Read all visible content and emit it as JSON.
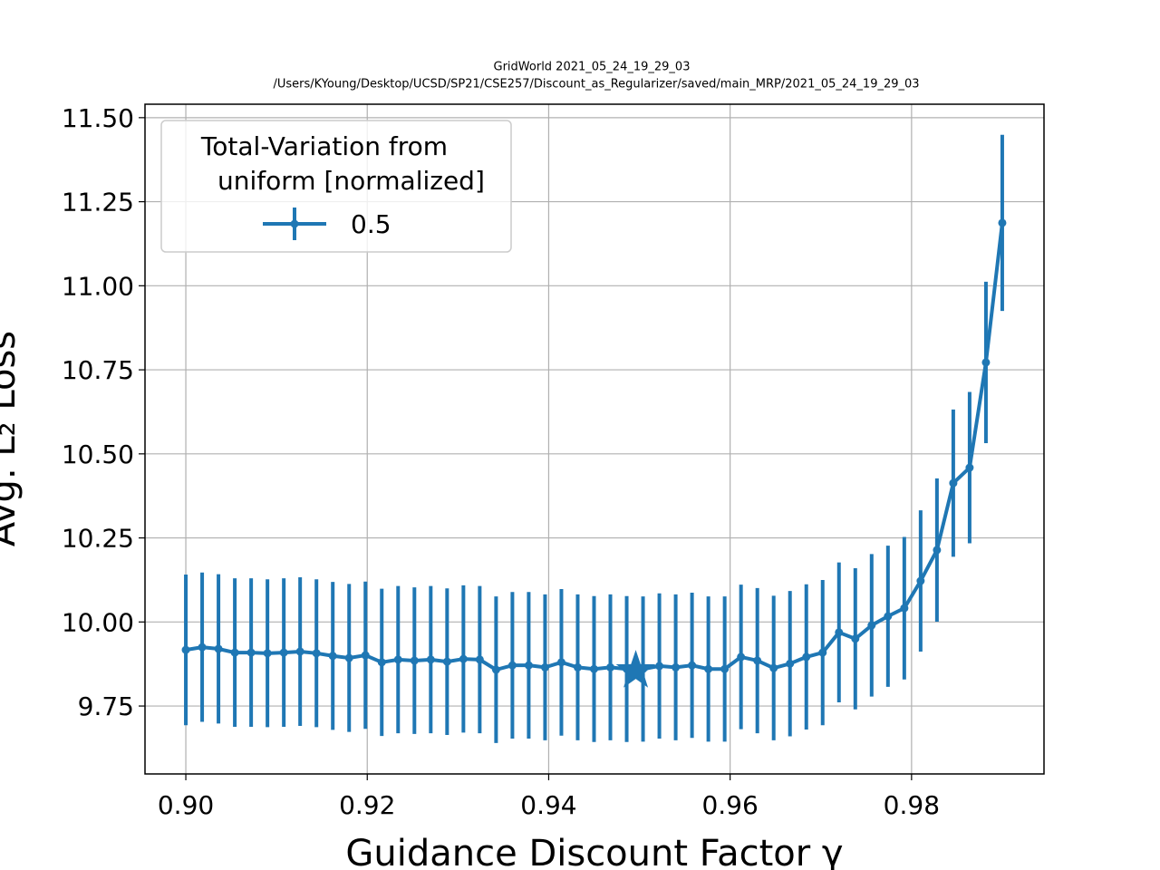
{
  "chart_data": {
    "type": "line",
    "title": "GridWorld  2021_05_24_19_29_03",
    "subtitle": "/Users/KYoung/Desktop/UCSD/SP21/CSE257/Discount_as_Regularizer/saved/main_MRP/2021_05_24_19_29_03",
    "x_label": "Guidance Discount Factor γ",
    "y_label": "Avg. L₂ Loss",
    "legend_title": "Total-Variation from\n uniform [normalized]",
    "legend_position": "upper left",
    "grid": true,
    "xlim": [
      0.8955,
      0.9946
    ],
    "ylim": [
      9.548,
      11.54
    ],
    "xticks": [
      {
        "value": 0.9,
        "label": "0.90"
      },
      {
        "value": 0.92,
        "label": "0.92"
      },
      {
        "value": 0.94,
        "label": "0.94"
      },
      {
        "value": 0.96,
        "label": "0.96"
      },
      {
        "value": 0.98,
        "label": "0.98"
      }
    ],
    "yticks": [
      9.75,
      {
        "value": 10,
        "label": "10.00"
      },
      10.25,
      {
        "value": 10.5,
        "label": "10.50"
      },
      10.75,
      {
        "value": 11,
        "label": "11.00"
      },
      11.25,
      {
        "value": 11.5,
        "label": "11.50"
      }
    ],
    "x": [
      0.9,
      0.9018,
      0.9036,
      0.9054,
      0.9072,
      0.909,
      0.9108,
      0.9126,
      0.9144,
      0.9162,
      0.918,
      0.9198,
      0.9216,
      0.9234,
      0.9252,
      0.927,
      0.9288,
      0.9306,
      0.9324,
      0.9342,
      0.936,
      0.9378,
      0.9396,
      0.9414,
      0.9432,
      0.945,
      0.9468,
      0.9486,
      0.9504,
      0.9522,
      0.954,
      0.9558,
      0.9576,
      0.9594,
      0.9612,
      0.963,
      0.9648,
      0.9666,
      0.9684,
      0.9702,
      0.972,
      0.9738,
      0.9756,
      0.9774,
      0.9792,
      0.981,
      0.9828,
      0.9846,
      0.9864,
      0.9882,
      0.99
    ],
    "series": [
      {
        "name": "0.5",
        "color": "#1f77b4",
        "values": [
          9.917,
          9.925,
          9.92,
          9.909,
          9.909,
          9.907,
          9.909,
          9.912,
          9.907,
          9.899,
          9.893,
          9.901,
          9.88,
          9.888,
          9.885,
          9.888,
          9.882,
          9.89,
          9.888,
          9.858,
          9.871,
          9.871,
          9.865,
          9.88,
          9.865,
          9.86,
          9.865,
          9.86,
          9.86,
          9.869,
          9.865,
          9.871,
          9.86,
          9.86,
          9.896,
          9.885,
          9.863,
          9.876,
          9.896,
          9.909,
          9.969,
          9.95,
          9.99,
          10.017,
          10.041,
          10.122,
          10.214,
          10.413,
          10.459,
          10.772,
          11.187
        ],
        "errors": [
          0.224,
          0.222,
          0.222,
          0.221,
          0.221,
          0.22,
          0.221,
          0.221,
          0.22,
          0.22,
          0.22,
          0.219,
          0.219,
          0.219,
          0.218,
          0.219,
          0.218,
          0.219,
          0.219,
          0.218,
          0.218,
          0.218,
          0.217,
          0.218,
          0.217,
          0.217,
          0.217,
          0.217,
          0.216,
          0.216,
          0.217,
          0.216,
          0.216,
          0.216,
          0.215,
          0.216,
          0.215,
          0.216,
          0.216,
          0.216,
          0.208,
          0.21,
          0.212,
          0.21,
          0.212,
          0.21,
          0.213,
          0.219,
          0.225,
          0.24,
          0.262
        ]
      }
    ],
    "highlight": {
      "x": 0.9496,
      "y": 9.855
    }
  }
}
